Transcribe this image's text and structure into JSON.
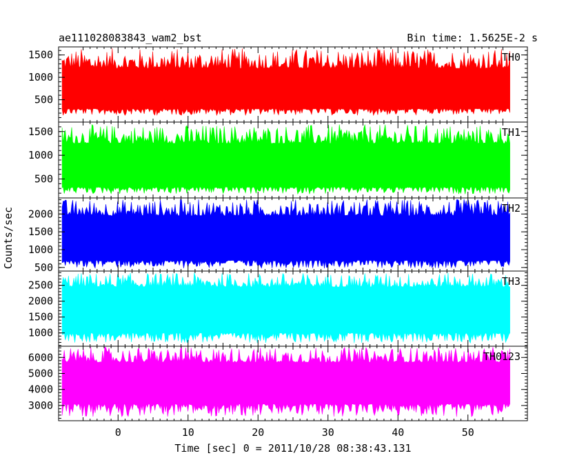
{
  "chart_data": {
    "type": "line",
    "title_left": "ae111028083843_wam2_bst",
    "title_right": "Bin time: 1.5625E-2  s",
    "xlabel": "Time [sec] 0 = 2011/10/28 08:38:43.131",
    "ylabel": "Counts/sec",
    "xlim": [
      -8.5,
      58.5
    ],
    "x_range": [
      -8,
      56
    ],
    "x_ticks": [
      0,
      10,
      20,
      30,
      40,
      50
    ],
    "panels": [
      {
        "name": "TH0",
        "color": "#ff0000",
        "ylim": [
          0,
          1680
        ],
        "y_ticks": [
          500,
          1000,
          1500
        ],
        "band": {
          "mean": 700,
          "low": 150,
          "high": 1650,
          "core_low": 300,
          "core_high": 1200
        }
      },
      {
        "name": "TH1",
        "color": "#00ff00",
        "ylim": [
          100,
          1700
        ],
        "y_ticks": [
          500,
          1000,
          1500
        ],
        "band": {
          "mean": 780,
          "low": 180,
          "high": 1650,
          "core_low": 330,
          "core_high": 1250
        }
      },
      {
        "name": "TH2",
        "color": "#0000ff",
        "ylim": [
          400,
          2450
        ],
        "y_ticks": [
          500,
          1000,
          1500,
          2000
        ],
        "band": {
          "mean": 1250,
          "low": 480,
          "high": 2420,
          "core_low": 700,
          "core_high": 1950
        }
      },
      {
        "name": "TH3",
        "color": "#00ffff",
        "ylim": [
          580,
          2950
        ],
        "y_ticks": [
          1000,
          1500,
          2000,
          2500
        ],
        "band": {
          "mean": 1700,
          "low": 680,
          "high": 2900,
          "core_low": 1000,
          "core_high": 2450
        }
      },
      {
        "name": "TH0123",
        "color": "#ff00ff",
        "ylim": [
          2050,
          6700
        ],
        "y_ticks": [
          3000,
          4000,
          5000,
          6000
        ],
        "band": {
          "mean": 4400,
          "low": 2300,
          "high": 6650,
          "core_low": 3100,
          "core_high": 5700
        }
      }
    ]
  }
}
